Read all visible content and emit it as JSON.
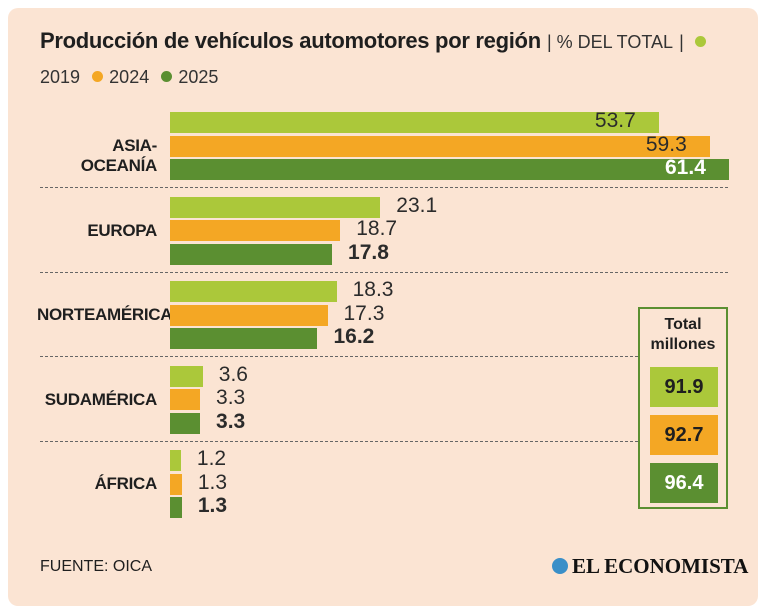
{
  "title": "Producción de vehículos automotores por región",
  "subtitle": "% DEL TOTAL",
  "colors": {
    "2019": "#abc83a",
    "2024": "#f4a724",
    "2025": "#5b8f31"
  },
  "chart_data": {
    "type": "bar",
    "orientation": "horizontal",
    "title": "Producción de vehículos automotores por región",
    "subtitle": "% DEL TOTAL",
    "categories": [
      "ASIA-OCEANÍA",
      "EUROPA",
      "NORTEAMÉRICA",
      "SUDAMÉRICA",
      "ÁFRICA"
    ],
    "series": [
      {
        "name": "2019",
        "values": [
          53.7,
          23.1,
          18.3,
          3.6,
          1.2
        ]
      },
      {
        "name": "2024",
        "values": [
          59.3,
          18.7,
          17.3,
          3.3,
          1.3
        ]
      },
      {
        "name": "2025",
        "values": [
          61.4,
          17.8,
          16.2,
          3.3,
          1.3
        ]
      }
    ],
    "value_labels": [
      [
        "53.7",
        "59.3",
        "61.4"
      ],
      [
        "23.1",
        "18.7",
        "17.8"
      ],
      [
        "18.3",
        "17.3",
        "16.2"
      ],
      [
        "3.6",
        "3.3",
        "3.3"
      ],
      [
        "1.2",
        "1.3",
        "1.3"
      ]
    ],
    "legend": [
      "2019",
      "2024",
      "2025"
    ],
    "legend_position": "top",
    "xlim": [
      0,
      61.4
    ],
    "totals": {
      "title": "Total millones",
      "values": [
        {
          "year": "2019",
          "value": "91.9"
        },
        {
          "year": "2024",
          "value": "92.7"
        },
        {
          "year": "2025",
          "value": "96.4"
        }
      ]
    }
  },
  "footer": {
    "source": "FUENTE: OICA",
    "brand": "EL ECONOMISTA"
  }
}
